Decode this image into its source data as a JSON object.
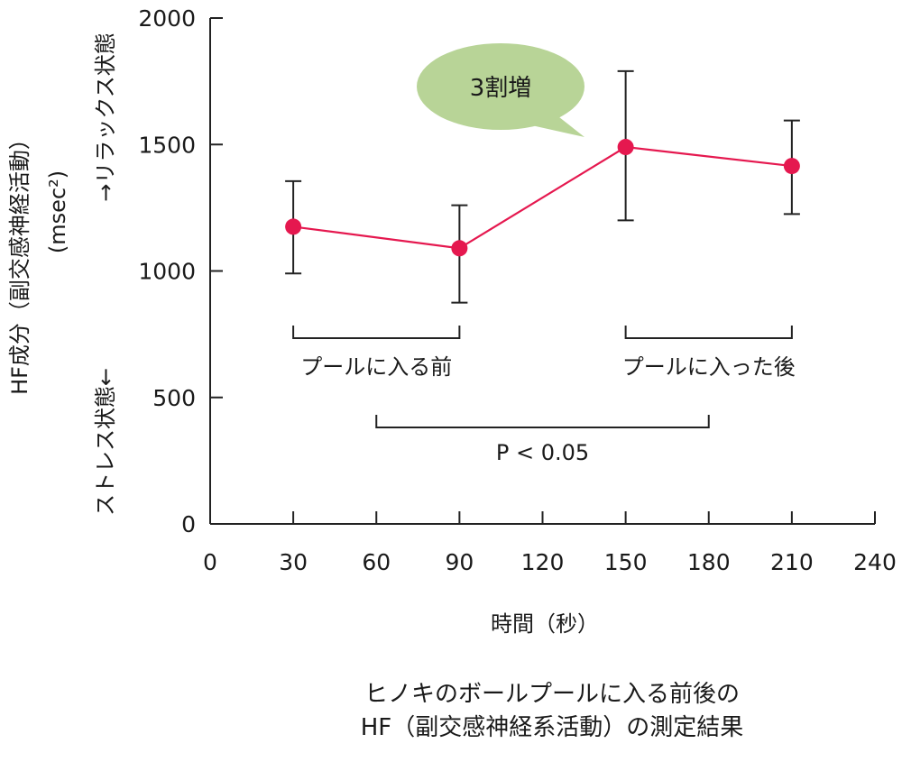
{
  "chart_data": {
    "type": "line",
    "ylabel_main": "HF成分（副交感神経活動）",
    "ylabel_unit": "(msec²)",
    "y_right_top": "→リラックス状態",
    "y_right_bottom": "ストレス状態←",
    "xlabel": "時間（秒）",
    "caption": [
      "ヒノキのボールプールに入る前後の",
      "HF（副交感神経系活動）の測定結果"
    ],
    "xlim": [
      0,
      240
    ],
    "ylim": [
      0,
      2000
    ],
    "x_ticks": [
      0,
      30,
      60,
      90,
      120,
      150,
      180,
      210,
      240
    ],
    "y_ticks": [
      0,
      500,
      1000,
      1500,
      2000
    ],
    "series": [
      {
        "color": "#e5184f",
        "points": [
          {
            "x": 30,
            "y": 1175,
            "err_low": 990,
            "err_high": 1355
          },
          {
            "x": 90,
            "y": 1090,
            "err_low": 875,
            "err_high": 1260
          },
          {
            "x": 150,
            "y": 1490,
            "err_low": 1200,
            "err_high": 1790
          },
          {
            "x": 210,
            "y": 1415,
            "err_low": 1225,
            "err_high": 1595
          }
        ]
      }
    ],
    "annotations": {
      "callout": "3割増",
      "callout_color": "#b8d497",
      "group_before": {
        "label": "プールに入る前",
        "x_from": 30,
        "x_to": 90
      },
      "group_after": {
        "label": "プールに入った後",
        "x_from": 150,
        "x_to": 210
      },
      "significance": {
        "label": "P < 0.05",
        "x_from": 60,
        "x_to": 180
      }
    }
  }
}
